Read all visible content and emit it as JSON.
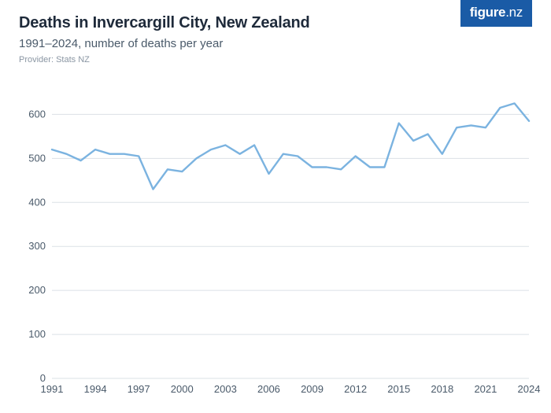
{
  "header": {
    "title": "Deaths in Invercargill City, New Zealand",
    "subtitle": "1991–2024, number of deaths per year",
    "provider": "Provider: Stats NZ"
  },
  "logo": {
    "text_a": "figure",
    "text_b": ".nz",
    "bg_color": "#1a5ba6"
  },
  "colors": {
    "title": "#1e2a3a",
    "subtitle": "#4a5a6a",
    "provider": "#8a96a3",
    "grid": "#dbe1e6",
    "axis_label": "#4a5a6a",
    "line": "#7bb3e0",
    "background": "#ffffff"
  },
  "chart": {
    "type": "line",
    "xlim": [
      1991,
      2024
    ],
    "ylim": [
      0,
      640
    ],
    "yticks": [
      0,
      100,
      200,
      300,
      400,
      500,
      600
    ],
    "xticks": [
      1991,
      1994,
      1997,
      2000,
      2003,
      2006,
      2009,
      2012,
      2015,
      2018,
      2021,
      2024
    ],
    "line_width": 2.4,
    "grid_width": 1,
    "label_fontsize": 13,
    "years": [
      1991,
      1992,
      1993,
      1994,
      1995,
      1996,
      1997,
      1998,
      1999,
      2000,
      2001,
      2002,
      2003,
      2004,
      2005,
      2006,
      2007,
      2008,
      2009,
      2010,
      2011,
      2012,
      2013,
      2014,
      2015,
      2016,
      2017,
      2018,
      2019,
      2020,
      2021,
      2022,
      2023,
      2024
    ],
    "values": [
      520,
      510,
      495,
      520,
      510,
      510,
      505,
      430,
      475,
      470,
      500,
      520,
      530,
      510,
      530,
      465,
      510,
      505,
      480,
      480,
      475,
      505,
      480,
      480,
      580,
      540,
      555,
      510,
      570,
      575,
      570,
      615,
      625,
      585
    ]
  }
}
